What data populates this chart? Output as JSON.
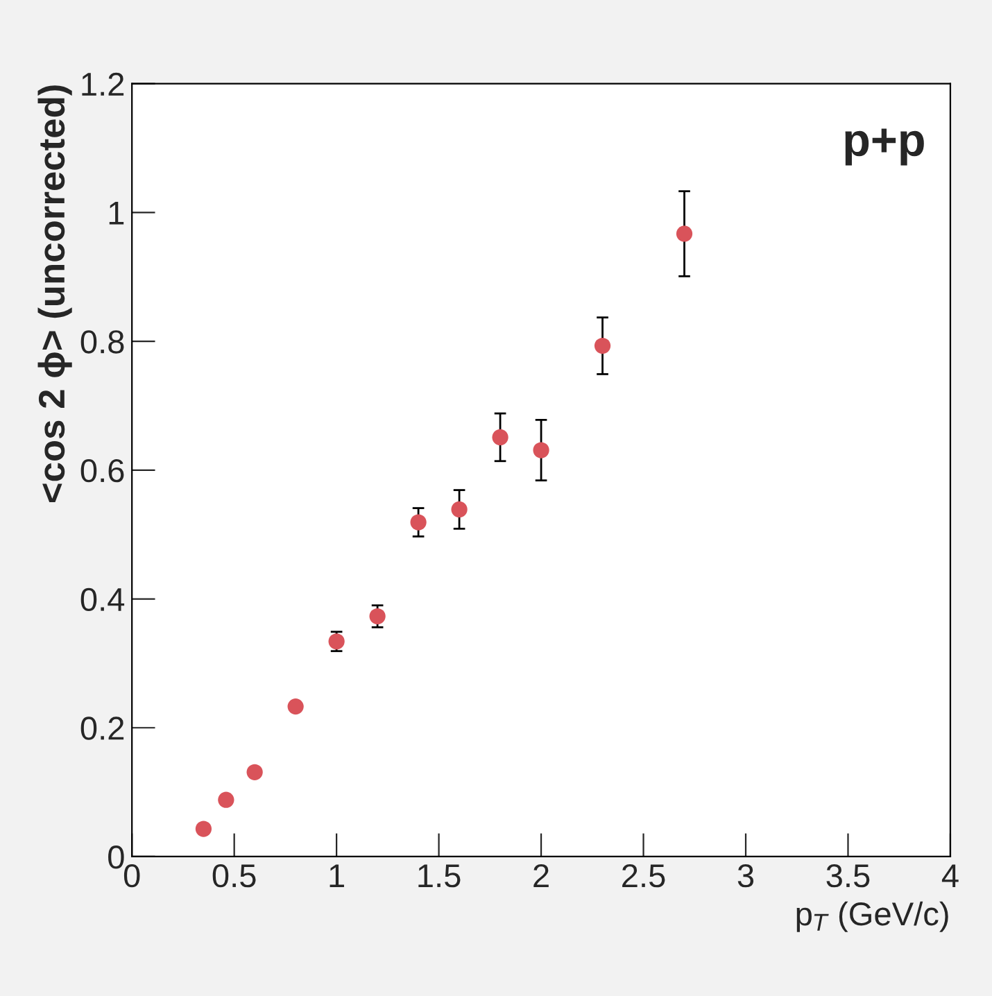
{
  "chart_data": {
    "type": "scatter",
    "xlabel": "p$_{T}$ (GeV/c)",
    "ylabel": "<cos 2 ϕ> (uncorrected)",
    "annotations": [
      "p+p"
    ],
    "x": [
      0.35,
      0.46,
      0.6,
      0.8,
      1.0,
      1.2,
      1.4,
      1.6,
      1.8,
      2.0,
      2.3,
      2.7
    ],
    "series": [
      {
        "color": "#d9535a",
        "values": [
          0.043,
          0.088,
          0.131,
          0.233,
          0.334,
          0.373,
          0.519,
          0.539,
          0.651,
          0.631,
          0.793,
          0.967
        ],
        "errors": [
          null,
          null,
          null,
          null,
          0.015,
          0.017,
          0.022,
          0.03,
          0.037,
          0.047,
          0.044,
          0.066
        ]
      }
    ],
    "xlim": [
      0,
      4
    ],
    "ylim": [
      0,
      1.2
    ],
    "xticks": [
      0,
      0.5,
      1,
      1.5,
      2,
      2.5,
      3,
      3.5,
      4
    ],
    "yticks": [
      0,
      0.2,
      0.4,
      0.6,
      0.8,
      1,
      1.2
    ],
    "grid": false,
    "legend": false,
    "marker": "circle"
  }
}
